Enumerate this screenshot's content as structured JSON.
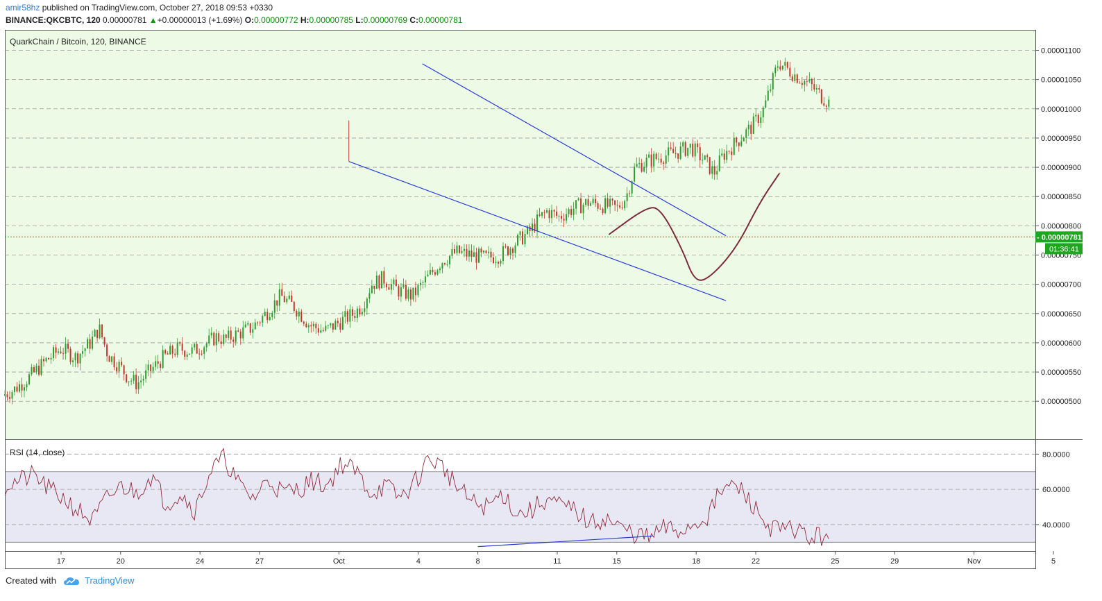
{
  "header": {
    "author": "amir58hz",
    "published": "published on TradingView.com, October 27, 2018 09:53 +0330",
    "symbol": "BINANCE:QKCBTC, 120",
    "last": "0.00000781",
    "change_arrow": "▲",
    "change": "+0.00000013 (+1.69%)",
    "o_label": "O:",
    "o_value": "0.00000772",
    "h_label": "H:",
    "h_value": "0.00000785",
    "l_label": "L:",
    "l_value": "0.00000769",
    "c_label": "C:",
    "c_value": "0.00000781"
  },
  "footer": {
    "created_with": "Created with",
    "brand": "TradingView",
    "logo_icon": "tradingview-cloud-icon"
  },
  "colors": {
    "up": "#2e9c2e",
    "down": "#c0392b",
    "main_bg": "#edfbe6",
    "rsi_band": "#e8e8f4",
    "trendline": "#2a3bd6",
    "projection": "#7b2a3b",
    "rsi_line": "#8e2a3a",
    "price_tag": "#1fa51f",
    "grid": "#999999"
  },
  "chart_data": [
    {
      "type": "candlestick",
      "title": "QuarkChain / Bitcoin, 120, BINANCE",
      "ylim": [
        4.35e-06,
        1.135e-05
      ],
      "y_ticks": [
        "0.00001100",
        "0.00001050",
        "0.00001000",
        "0.00000950",
        "0.00000900",
        "0.00000850",
        "0.00000800",
        "0.00000750",
        "0.00000700",
        "0.00000650",
        "0.00000600",
        "0.00000550",
        "0.00000500"
      ],
      "x_tick_labels": [
        "17",
        "20",
        "24",
        "27",
        "Oct",
        "4",
        "8",
        "11",
        "15",
        "18",
        "22",
        "25",
        "29",
        "Nov",
        "5"
      ],
      "last_price": "0.00000781",
      "countdown": "01:36:41",
      "price_path_days": [
        0,
        0.4,
        1,
        1.5,
        2,
        2.5,
        3,
        3.3,
        3.6,
        4,
        4.3,
        4.6,
        5,
        5.5,
        6,
        6.5,
        7,
        7.3,
        7.6,
        8,
        8.5,
        9,
        9.5,
        10,
        10.5,
        11,
        11.5,
        12,
        12.3,
        12.6,
        13,
        13.5,
        14,
        14.5,
        15,
        15.5,
        16,
        16.5,
        17,
        17.5,
        18,
        18.3,
        18.6,
        19,
        19.5,
        20,
        20.5,
        21,
        21.3,
        21.6,
        22,
        22.3,
        22.6,
        23,
        23.5,
        24,
        24.3,
        24.6,
        25,
        25.3,
        25.6,
        26,
        26.5,
        27,
        27.6,
        28,
        28.5,
        29,
        29.5,
        30,
        30.5,
        31,
        31.5,
        32,
        32.5,
        33,
        33.3,
        33.5,
        33.7,
        34,
        34.5,
        35,
        35.5,
        36,
        36.5,
        37,
        37.5,
        38,
        38.5,
        39,
        39.5,
        40,
        40.5,
        41,
        41.5,
        42,
        42.5,
        43,
        43.5,
        44,
        44.5,
        45,
        45.5,
        46,
        46.5,
        47,
        47.5,
        48,
        48.5,
        49,
        49.5,
        50,
        50.5,
        51,
        51.5,
        52,
        52.5,
        53,
        53.5,
        54,
        54.3,
        54.6,
        55,
        55.5,
        56,
        56.5,
        57,
        57.3,
        57.6,
        58,
        58.3,
        58.6,
        59,
        59.2
      ],
      "price_path_values": [
        5.1e-06,
        5.2e-06,
        5.45e-06,
        5.7e-06,
        5.9e-06,
        5.75e-06,
        6e-06,
        6.25e-06,
        5.8e-06,
        5.6e-06,
        5.4e-06,
        5.3e-06,
        5.5e-06,
        5.75e-06,
        5.9e-06,
        5.85e-06,
        6e-06,
        6.1e-06,
        6.05e-06,
        6.15e-06,
        6.25e-06,
        6.5e-06,
        6.8e-06,
        6.6e-06,
        6.3e-06,
        6.2e-06,
        6.35e-06,
        6.5e-06,
        6.65e-06,
        7e-06,
        7.1e-06,
        6.9e-06,
        6.8e-06,
        7.1e-06,
        7.4e-06,
        7.55e-06,
        7.5e-06,
        7.45e-06,
        7.5e-06,
        7.7e-06,
        7.9e-06,
        8.1e-06,
        8.25e-06,
        8.15e-06,
        8.3e-06,
        8.4e-06,
        8.35e-06,
        8.3e-06,
        8.5e-06,
        9e-06,
        9.1e-06,
        9.15e-06,
        9.2e-06,
        9.25e-06,
        9.35e-06,
        9.1e-06,
        8.9e-06,
        9.2e-06,
        9.4e-06,
        9.55e-06,
        9.7e-06,
        1e-05,
        1.08e-05,
        1.06e-05,
        1.04e-05,
        1.02e-05,
        1e-05,
        1.01e-05,
        1.03e-05,
        1.06e-05,
        1.08e-05,
        1.06e-05,
        1.04e-05,
        1.03e-05,
        1.01e-05,
        9.9e-06,
        1.03e-05,
        1.05e-05,
        1e-05,
        9.6e-06,
        9.3e-06,
        9.2e-06,
        9.1e-06,
        8.95e-06,
        8.8e-06,
        8.6e-06,
        8.4e-06,
        8.6e-06,
        8.9e-06,
        9e-06,
        9.3e-06,
        9.5e-06,
        9e-06,
        8.7e-06,
        8.6e-06,
        8.5e-06,
        8.45e-06,
        8.4e-06,
        8.2e-06,
        7.9e-06,
        7.7e-06,
        7.6e-06,
        7.65e-06,
        7.81e-06,
        7.81e-06,
        7.81e-06,
        7.81e-06,
        7.81e-06,
        7.81e-06,
        7.81e-06,
        7.81e-06,
        7.81e-06,
        7.81e-06,
        7.81e-06,
        7.81e-06,
        7.81e-06,
        7.81e-06,
        7.81e-06,
        7.81e-06,
        7.81e-06,
        7.81e-06,
        7.81e-06,
        7.81e-06,
        7.81e-06,
        7.81e-06,
        7.81e-06,
        7.81e-06,
        7.81e-06,
        7.81e-06,
        7.81e-06,
        7.81e-06,
        7.81e-06,
        7.81e-06,
        7.81e-06,
        7.81e-06,
        7.81e-06
      ],
      "candles_days_span": [
        0,
        28.2
      ],
      "upper_channel": [
        [
          19.2,
          1.077e-05
        ],
        [
          34.5,
          7.83e-06
        ]
      ],
      "lower_channel": [
        [
          15.5,
          9.1e-06
        ],
        [
          34.5,
          6.72e-06
        ]
      ],
      "projection_path": [
        [
          28.6,
          7.85e-06
        ],
        [
          30.5,
          8.32e-06
        ],
        [
          31.2,
          8.3e-06
        ],
        [
          32.3,
          7.6e-06
        ],
        [
          32.9,
          7.06e-06
        ],
        [
          33.6,
          7.08e-06
        ],
        [
          35.0,
          7.6e-06
        ],
        [
          36.2,
          8.4e-06
        ],
        [
          37.2,
          8.9e-06
        ]
      ]
    },
    {
      "type": "line",
      "title": "RSI (14, close)",
      "ylim": [
        25,
        88
      ],
      "y_ticks": [
        "80.0000",
        "60.0000",
        "40.0000"
      ],
      "band": [
        30,
        70
      ],
      "rsi_path_days": [
        0,
        1,
        1.5,
        2,
        2.5,
        3,
        3.5,
        4,
        4.5,
        5,
        5.5,
        6,
        6.5,
        7,
        7.5,
        8,
        8.5,
        9,
        9.5,
        10,
        10.5,
        11,
        11.5,
        12,
        12.5,
        13,
        13.5,
        14,
        14.5,
        15,
        15.5,
        16,
        16.5,
        17,
        17.5,
        18,
        18.5,
        19,
        19.5,
        20,
        20.5,
        21,
        21.5,
        22,
        22.5,
        23,
        23.5,
        24,
        24.5,
        25,
        25.5,
        26,
        26.5,
        27,
        27.5,
        28,
        28.2
      ],
      "rsi_path_values": [
        62,
        68,
        60,
        55,
        48,
        42,
        55,
        62,
        58,
        68,
        52,
        58,
        48,
        70,
        78,
        62,
        55,
        66,
        58,
        60,
        65,
        62,
        75,
        70,
        58,
        62,
        55,
        64,
        78,
        72,
        60,
        52,
        50,
        58,
        46,
        48,
        55,
        50,
        48,
        40,
        44,
        38,
        35,
        32,
        38,
        36,
        40,
        45,
        60,
        62,
        52,
        40,
        36,
        38,
        32,
        34,
        38
      ],
      "rsi_trendline": [
        [
          29.5,
          27.5
        ],
        [
          36.0,
          33.5
        ]
      ]
    }
  ]
}
